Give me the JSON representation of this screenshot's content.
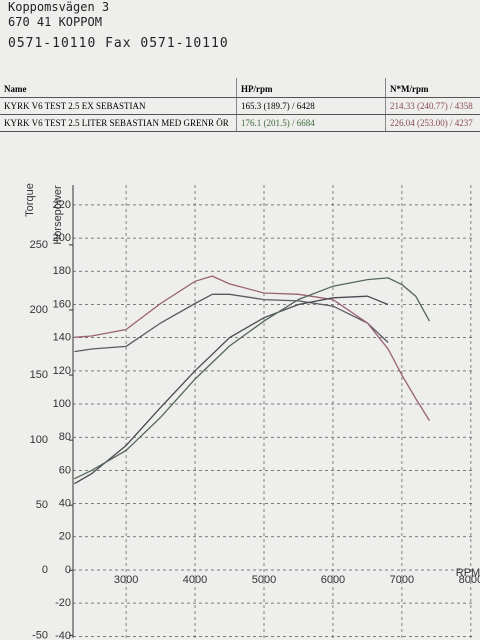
{
  "header": {
    "lines": [
      "Koppomsvägen 3",
      "670 41  KOPPOM",
      "0571-10110   Fax 0571-10110"
    ]
  },
  "table": {
    "columns": [
      "Name",
      "HP/rpm",
      "N*M/rpm"
    ],
    "rows": [
      [
        "KYRK V6 TEST 2.5 EX SEBASTIAN",
        "165.3 (189.7) / 6428",
        "214.33 (240.77) / 4358"
      ],
      [
        "KYRK V6 TEST 2.5 LITER SEBASTIAN MED GRENR ÖR",
        "176.1 (201.5) / 6684",
        "226.04 (253.00) / 4237"
      ]
    ]
  },
  "chart_data": {
    "type": "line",
    "y_label": "Torque",
    "y2_label": "Horsepower",
    "x_label": "RPM",
    "x": [
      2250,
      2500,
      3000,
      3500,
      4000,
      4250,
      4500,
      5000,
      5500,
      6000,
      6500,
      6800,
      7000,
      7200,
      7400
    ],
    "xlim": [
      2230,
      8060
    ],
    "xticks": [
      3000,
      4000,
      5000,
      6000,
      7000,
      8000
    ],
    "ylim": [
      -52,
      296
    ],
    "yticks": [
      -50,
      0,
      50,
      100,
      150,
      200,
      250
    ],
    "y2lim": [
      -41,
      232
    ],
    "y2ticks": [
      -40,
      -20,
      0,
      20,
      40,
      60,
      80,
      100,
      120,
      140,
      160,
      180,
      200,
      220
    ],
    "grid": true,
    "series": [
      {
        "color": "#5a5a62",
        "values": [
          168,
          170,
          172,
          190,
          205,
          212,
          212,
          208,
          207,
          203,
          190,
          175,
          null,
          null,
          null
        ]
      },
      {
        "color": "#9a6272",
        "values": [
          179,
          180,
          185,
          205,
          222,
          226,
          220,
          213,
          212,
          208,
          190,
          170,
          150,
          132,
          115
        ]
      },
      {
        "color": "#4a4a52",
        "axis": "y2",
        "values": [
          52,
          58,
          75,
          98,
          120,
          130,
          140,
          152,
          160,
          164,
          165,
          160,
          null,
          null,
          null
        ]
      },
      {
        "color": "#55665a",
        "axis": "y2",
        "values": [
          55,
          60,
          72,
          92,
          115,
          125,
          135,
          150,
          163,
          171,
          175,
          176,
          172,
          165,
          150
        ]
      }
    ]
  }
}
